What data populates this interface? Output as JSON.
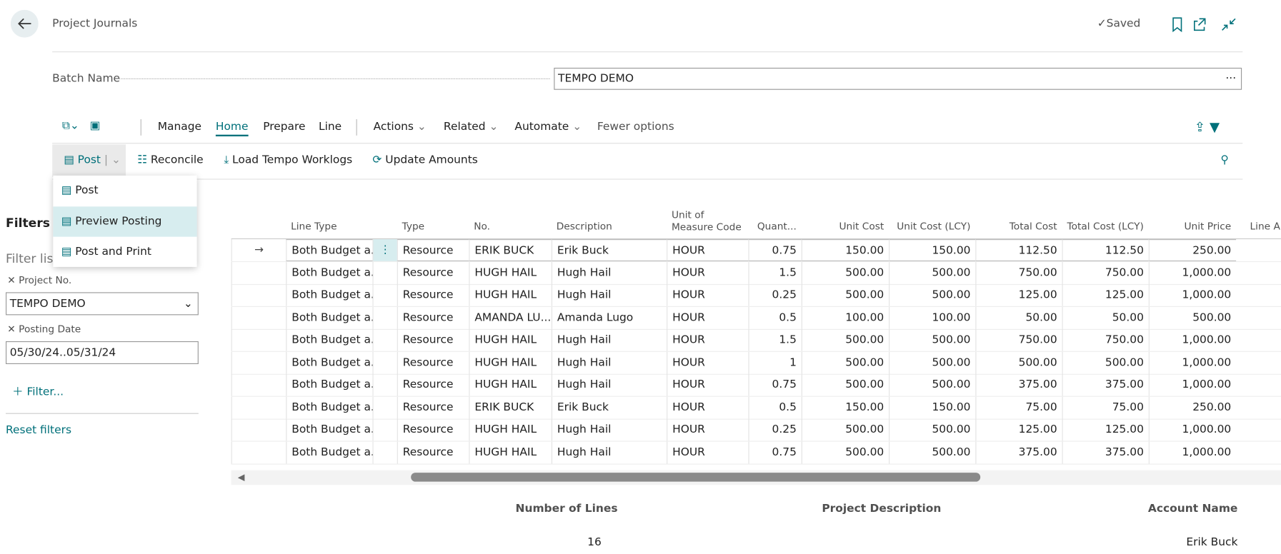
{
  "header": {
    "title": "Project Journals",
    "status": "Saved"
  },
  "batch": {
    "label": "Batch Name",
    "value": "TEMPO DEMO"
  },
  "menu": [
    "Manage",
    "Home",
    "Prepare",
    "Line",
    "Actions",
    "Related",
    "Automate",
    "Fewer options"
  ],
  "actions": [
    "Post",
    "Reconcile",
    "Load Tempo Worklogs",
    "Update Amounts"
  ],
  "dropdown": [
    "Post",
    "Preview Posting",
    "Post and Print"
  ],
  "filters": {
    "title": "Filters",
    "subtitle": "Filter list",
    "fields": [
      {
        "label": "Project No.",
        "value": "TEMPO DEMO"
      },
      {
        "label": "Posting Date",
        "value": "05/30/24..05/31/24"
      }
    ],
    "add": "Filter...",
    "reset": "Reset filters"
  },
  "table": {
    "columns": [
      "Line Type",
      "Type",
      "No.",
      "Description",
      "Unit of Measure Code",
      "Quant...",
      "Unit Cost",
      "Unit Cost (LCY)",
      "Total Cost",
      "Total Cost (LCY)",
      "Unit Price",
      "Line A"
    ],
    "rows": [
      [
        "Both Budget a...",
        "Resource",
        "ERIK BUCK",
        "Erik Buck",
        "HOUR",
        "0.75",
        "150.00",
        "150.00",
        "112.50",
        "112.50",
        "250.00"
      ],
      [
        "Both Budget a...",
        "Resource",
        "HUGH HAIL",
        "Hugh Hail",
        "HOUR",
        "1.5",
        "500.00",
        "500.00",
        "750.00",
        "750.00",
        "1,000.00"
      ],
      [
        "Both Budget a...",
        "Resource",
        "HUGH HAIL",
        "Hugh Hail",
        "HOUR",
        "0.25",
        "500.00",
        "500.00",
        "125.00",
        "125.00",
        "1,000.00"
      ],
      [
        "Both Budget a...",
        "Resource",
        "AMANDA LU...",
        "Amanda Lugo",
        "HOUR",
        "0.5",
        "100.00",
        "100.00",
        "50.00",
        "50.00",
        "500.00"
      ],
      [
        "Both Budget a...",
        "Resource",
        "HUGH HAIL",
        "Hugh Hail",
        "HOUR",
        "1.5",
        "500.00",
        "500.00",
        "750.00",
        "750.00",
        "1,000.00"
      ],
      [
        "Both Budget a...",
        "Resource",
        "HUGH HAIL",
        "Hugh Hail",
        "HOUR",
        "1",
        "500.00",
        "500.00",
        "500.00",
        "500.00",
        "1,000.00"
      ],
      [
        "Both Budget a...",
        "Resource",
        "HUGH HAIL",
        "Hugh Hail",
        "HOUR",
        "0.75",
        "500.00",
        "500.00",
        "375.00",
        "375.00",
        "1,000.00"
      ],
      [
        "Both Budget a...",
        "Resource",
        "ERIK BUCK",
        "Erik Buck",
        "HOUR",
        "0.5",
        "150.00",
        "150.00",
        "75.00",
        "75.00",
        "250.00"
      ],
      [
        "Both Budget a...",
        "Resource",
        "HUGH HAIL",
        "Hugh Hail",
        "HOUR",
        "0.25",
        "500.00",
        "500.00",
        "125.00",
        "125.00",
        "1,000.00"
      ],
      [
        "Both Budget a...",
        "Resource",
        "HUGH HAIL",
        "Hugh Hail",
        "HOUR",
        "0.75",
        "500.00",
        "500.00",
        "375.00",
        "375.00",
        "1,000.00"
      ]
    ]
  },
  "footer": [
    {
      "label": "Number of Lines",
      "value": "16"
    },
    {
      "label": "Project Description"
    },
    {
      "label": "Account Name",
      "value": "Erik Buck"
    }
  ]
}
